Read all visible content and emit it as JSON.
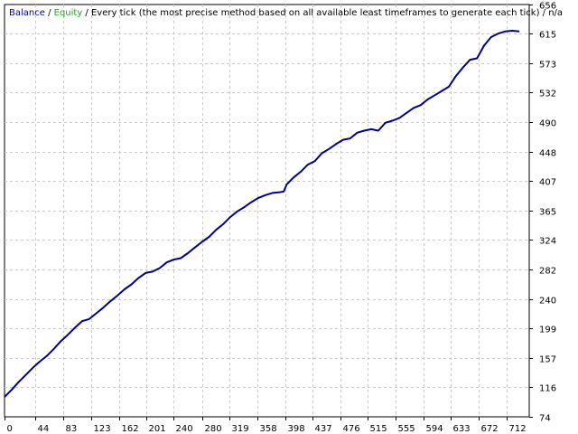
{
  "chart_data": {
    "type": "line",
    "legend_text": {
      "balance": "Balance",
      "separator": " / ",
      "equity": "Equity",
      "description": " / Every tick (the most precise method based on all available least timeframes to generate each tick) / n/a"
    },
    "x_ticks": [
      0,
      44,
      83,
      123,
      162,
      201,
      240,
      280,
      319,
      358,
      398,
      437,
      476,
      515,
      555,
      594,
      633,
      672,
      712
    ],
    "y_ticks": [
      74,
      116,
      157,
      199,
      240,
      282,
      324,
      365,
      407,
      448,
      490,
      532,
      573,
      615,
      656
    ],
    "xlim": [
      0,
      744
    ],
    "ylim": [
      74,
      656
    ],
    "grid": true,
    "legend_position": "top-left",
    "colors": {
      "balance": "#00008b",
      "equity": "#2e9e2e",
      "grid": "#c8c8c8",
      "axis": "#000000"
    },
    "series": [
      {
        "name": "Balance",
        "x": [
          0,
          10,
          20,
          30,
          40,
          50,
          60,
          70,
          80,
          90,
          100,
          110,
          120,
          130,
          140,
          150,
          160,
          170,
          180,
          190,
          200,
          210,
          220,
          230,
          240,
          250,
          260,
          270,
          280,
          290,
          300,
          310,
          320,
          330,
          340,
          350,
          360,
          370,
          380,
          390,
          396,
          400,
          410,
          420,
          430,
          440,
          450,
          460,
          470,
          480,
          490,
          500,
          510,
          520,
          530,
          540,
          550,
          560,
          570,
          580,
          590,
          600,
          610,
          620,
          630,
          640,
          650,
          660,
          670,
          680,
          690,
          700,
          710,
          720,
          730
        ],
        "values": [
          102,
          112,
          123,
          133,
          143,
          152,
          160,
          170,
          181,
          190,
          200,
          209,
          212,
          220,
          228,
          237,
          245,
          254,
          261,
          270,
          277,
          279,
          284,
          292,
          296,
          298,
          305,
          313,
          321,
          328,
          338,
          346,
          356,
          364,
          370,
          377,
          383,
          387,
          390,
          391,
          392,
          402,
          412,
          420,
          430,
          435,
          446,
          452,
          459,
          465,
          467,
          475,
          478,
          480,
          478,
          489,
          492,
          496,
          503,
          510,
          514,
          522,
          528,
          534,
          540,
          555,
          567,
          578,
          580,
          598,
          610,
          615,
          618,
          619,
          618
        ]
      }
    ]
  }
}
